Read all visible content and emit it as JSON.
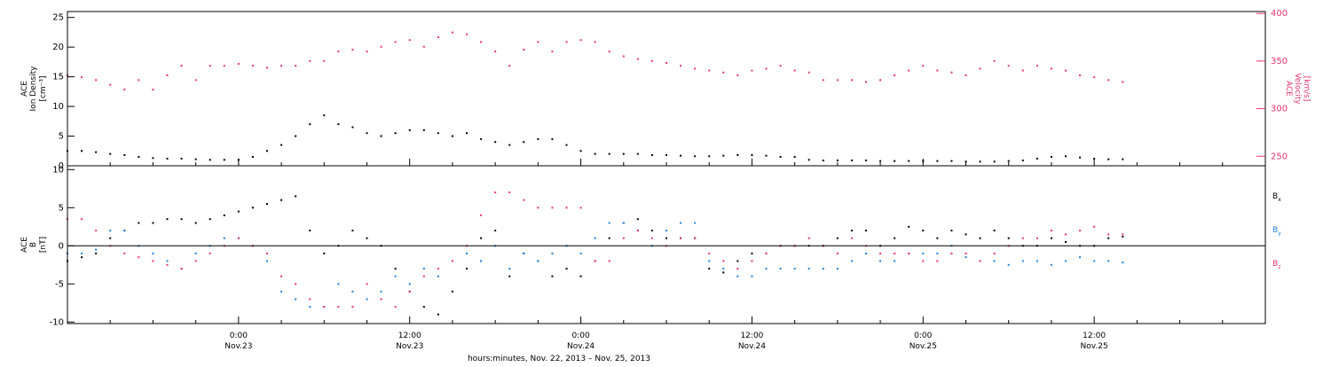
{
  "colors": {
    "black": "#000000",
    "pink": "#e8336a",
    "blue": "#1f7fd8"
  },
  "xaxis": {
    "title": "hours:minutes, Nov. 22, 2013 – Nov. 25, 2013",
    "ticks": [
      {
        "hour": 24,
        "time": "0:00",
        "date": "Nov.23"
      },
      {
        "hour": 36,
        "time": "12:00",
        "date": "Nov.23"
      },
      {
        "hour": 48,
        "time": "0:00",
        "date": "Nov.24"
      },
      {
        "hour": 60,
        "time": "12:00",
        "date": "Nov.24"
      },
      {
        "hour": 72,
        "time": "0:00",
        "date": "Nov.25"
      },
      {
        "hour": 84,
        "time": "12:00",
        "date": "Nov.25"
      }
    ],
    "range_hours": [
      12.0,
      96.0
    ]
  },
  "chart_data": [
    {
      "type": "scatter",
      "title": "",
      "xlabel": "hours:minutes, Nov. 22, 2013 – Nov. 25, 2013",
      "left_axis": {
        "label_lines": [
          "ACE",
          "Ion Density",
          "[cm⁻³]"
        ],
        "range": [
          0,
          26
        ],
        "ticks": [
          0,
          5,
          10,
          15,
          20,
          25
        ]
      },
      "right_axis": {
        "label_lines": [
          "ACE",
          "Velocity",
          "[km/s]"
        ],
        "range": [
          240,
          402
        ],
        "ticks": [
          250,
          300,
          350,
          400
        ]
      },
      "series": [
        {
          "name": "Ion Density",
          "axis": "left",
          "color": "black",
          "x": [
            12,
            13,
            14,
            15,
            16,
            17,
            18,
            19,
            20,
            21,
            22,
            23,
            24,
            25,
            26,
            27,
            28,
            29,
            30,
            31,
            32,
            33,
            34,
            35,
            36,
            37,
            38,
            39,
            40,
            41,
            42,
            43,
            44,
            45,
            46,
            47,
            48,
            49,
            50,
            51,
            52,
            53,
            54,
            55,
            56,
            57,
            58,
            59,
            60,
            61,
            62,
            63,
            64,
            65,
            66,
            67,
            68,
            69,
            70,
            71,
            72,
            73,
            74,
            75,
            76,
            77,
            78,
            79,
            80,
            81,
            82,
            83,
            84,
            85,
            86
          ],
          "y": [
            2.5,
            2.5,
            2.3,
            2,
            1.8,
            1.5,
            1.3,
            1.2,
            1.2,
            1.1,
            1,
            1,
            1,
            1.5,
            2.5,
            3.5,
            5,
            7,
            8.5,
            7,
            6.5,
            5.5,
            5,
            5.5,
            6,
            6,
            5.5,
            5,
            5.5,
            4.5,
            4,
            3.5,
            4,
            4.5,
            4.5,
            3.5,
            2.5,
            2,
            2,
            2,
            2,
            1.8,
            1.8,
            1.7,
            1.6,
            1.6,
            1.7,
            1.8,
            1.8,
            1.7,
            1.5,
            1.5,
            1,
            0.9,
            0.9,
            0.9,
            0.9,
            0.8,
            0.8,
            0.8,
            0.8,
            0.8,
            0.8,
            0.7,
            0.7,
            0.7,
            0.8,
            0.9,
            1.2,
            1.5,
            1.6,
            1.4,
            1.2,
            1.1,
            1.1
          ]
        },
        {
          "name": "Velocity",
          "axis": "right",
          "color": "pink",
          "x": [
            12,
            13,
            14,
            15,
            16,
            17,
            18,
            19,
            20,
            21,
            22,
            23,
            24,
            25,
            26,
            27,
            28,
            29,
            30,
            31,
            32,
            33,
            34,
            35,
            36,
            37,
            38,
            39,
            40,
            41,
            42,
            43,
            44,
            45,
            46,
            47,
            48,
            49,
            50,
            51,
            52,
            53,
            54,
            55,
            56,
            57,
            58,
            59,
            60,
            61,
            62,
            63,
            64,
            65,
            66,
            67,
            68,
            69,
            70,
            71,
            72,
            73,
            74,
            75,
            76,
            77,
            78,
            79,
            80,
            81,
            82,
            83,
            84,
            85,
            86
          ],
          "y": [
            335,
            333,
            330,
            325,
            320,
            330,
            320,
            335,
            345,
            330,
            345,
            345,
            347,
            345,
            343,
            345,
            345,
            350,
            350,
            360,
            362,
            360,
            365,
            370,
            372,
            365,
            375,
            380,
            378,
            370,
            360,
            345,
            362,
            370,
            360,
            370,
            372,
            370,
            360,
            355,
            352,
            350,
            348,
            345,
            342,
            340,
            338,
            335,
            340,
            342,
            345,
            340,
            338,
            330,
            330,
            330,
            328,
            330,
            335,
            340,
            345,
            340,
            338,
            335,
            342,
            350,
            345,
            340,
            345,
            342,
            340,
            335,
            333,
            330,
            328
          ]
        }
      ]
    },
    {
      "type": "scatter",
      "title": "",
      "xlabel": "hours:minutes, Nov. 22, 2013 – Nov. 25, 2013",
      "left_axis": {
        "label_lines": [
          "ACE",
          "B",
          "[nT]"
        ],
        "range": [
          -10.2,
          10.5
        ],
        "ticks": [
          -10,
          -5,
          0,
          5,
          10
        ]
      },
      "zero_line": true,
      "legend": {
        "placement": "right",
        "entries": [
          "Bx",
          "By",
          "Bz"
        ]
      },
      "series": [
        {
          "name": "Bx",
          "color": "black",
          "x": [
            12,
            13,
            14,
            15,
            16,
            17,
            18,
            19,
            20,
            21,
            22,
            23,
            24,
            25,
            26,
            27,
            28,
            29,
            30,
            31,
            32,
            33,
            34,
            35,
            36,
            37,
            38,
            39,
            40,
            41,
            42,
            43,
            44,
            45,
            46,
            47,
            48,
            49,
            50,
            51,
            52,
            53,
            54,
            55,
            56,
            57,
            58,
            59,
            60,
            61,
            62,
            63,
            64,
            65,
            66,
            67,
            68,
            69,
            70,
            71,
            72,
            73,
            74,
            75,
            76,
            77,
            78,
            79,
            80,
            81,
            82,
            83,
            84,
            85,
            86
          ],
          "y": [
            -2,
            -1.5,
            -1,
            1,
            2,
            3,
            3,
            3.5,
            3.5,
            3,
            3.5,
            4,
            4.5,
            5,
            5.5,
            6,
            6.5,
            2,
            -1,
            0,
            2,
            1,
            0,
            -3,
            -6,
            -8,
            -9,
            -6,
            -3,
            1,
            2,
            -4,
            -1,
            -2,
            -4,
            -3,
            -4,
            -2,
            1,
            3,
            3.5,
            2,
            1,
            1,
            1,
            -3,
            -3.5,
            -2,
            -1,
            -1,
            0,
            0,
            0,
            0,
            1,
            2,
            2,
            0,
            1,
            2.5,
            2,
            1,
            2,
            1.5,
            1,
            2,
            1,
            0,
            0,
            1,
            0.5,
            0,
            0,
            1,
            1.2
          ]
        },
        {
          "name": "By",
          "color": "blue",
          "x": [
            12,
            13,
            14,
            15,
            16,
            17,
            18,
            19,
            20,
            21,
            22,
            23,
            24,
            25,
            26,
            27,
            28,
            29,
            30,
            31,
            32,
            33,
            34,
            35,
            36,
            37,
            38,
            39,
            40,
            41,
            42,
            43,
            44,
            45,
            46,
            47,
            48,
            49,
            50,
            51,
            52,
            53,
            54,
            55,
            56,
            57,
            58,
            59,
            60,
            61,
            62,
            63,
            64,
            65,
            66,
            67,
            68,
            69,
            70,
            71,
            72,
            73,
            74,
            75,
            76,
            77,
            78,
            79,
            80,
            81,
            82,
            83,
            84,
            85,
            86
          ],
          "y": [
            -1,
            -1,
            -0.5,
            2,
            2,
            0,
            -1,
            -2,
            -3,
            -1,
            0,
            1,
            1,
            0,
            -2,
            -6,
            -7,
            -8,
            -8,
            -5,
            -6,
            -7,
            -6,
            -4,
            -5,
            -3,
            -4,
            -2,
            -1,
            -2,
            0,
            -3,
            -1,
            -2,
            -1,
            0,
            -1,
            1,
            3,
            3,
            2,
            0,
            2,
            3,
            3,
            -2,
            -3,
            -4,
            -4,
            -3,
            -3,
            -3,
            -3,
            -3,
            -3,
            -2,
            -1,
            -2,
            -2,
            -1,
            -1,
            -1,
            0,
            -1.5,
            -2,
            -2,
            -2.5,
            -2,
            -2,
            -2.5,
            -2,
            -1.5,
            -2,
            -2,
            -2.2
          ]
        },
        {
          "name": "Bz",
          "color": "pink",
          "x": [
            12,
            13,
            14,
            15,
            16,
            17,
            18,
            19,
            20,
            21,
            22,
            23,
            24,
            25,
            26,
            27,
            28,
            29,
            30,
            31,
            32,
            33,
            34,
            35,
            36,
            37,
            38,
            39,
            40,
            41,
            42,
            43,
            44,
            45,
            46,
            47,
            48,
            49,
            50,
            51,
            52,
            53,
            54,
            55,
            56,
            57,
            58,
            59,
            60,
            61,
            62,
            63,
            64,
            65,
            66,
            67,
            68,
            69,
            70,
            71,
            72,
            73,
            74,
            75,
            76,
            77,
            78,
            79,
            80,
            81,
            82,
            83,
            84,
            85,
            86
          ],
          "y": [
            3.5,
            3.5,
            2,
            0,
            -1,
            -1.5,
            -2,
            -2.5,
            -3,
            -2,
            -1,
            0,
            1,
            0,
            -1,
            -4,
            -5,
            -7,
            -8,
            -8,
            -8,
            -5,
            -7,
            -8,
            -6,
            -4,
            -3,
            -2,
            0,
            4,
            7,
            7,
            6,
            5,
            5,
            5,
            5,
            -2,
            -2,
            1,
            2,
            1,
            0,
            1,
            1,
            -1,
            -2,
            -3,
            -2,
            -1,
            0,
            0,
            1,
            0,
            -1,
            1,
            0,
            -1,
            -1,
            -1,
            -2,
            -2,
            -1,
            -1,
            -2,
            -1,
            0,
            1,
            1,
            2,
            1.5,
            2,
            2.5,
            1.5,
            1.5
          ]
        }
      ]
    }
  ]
}
